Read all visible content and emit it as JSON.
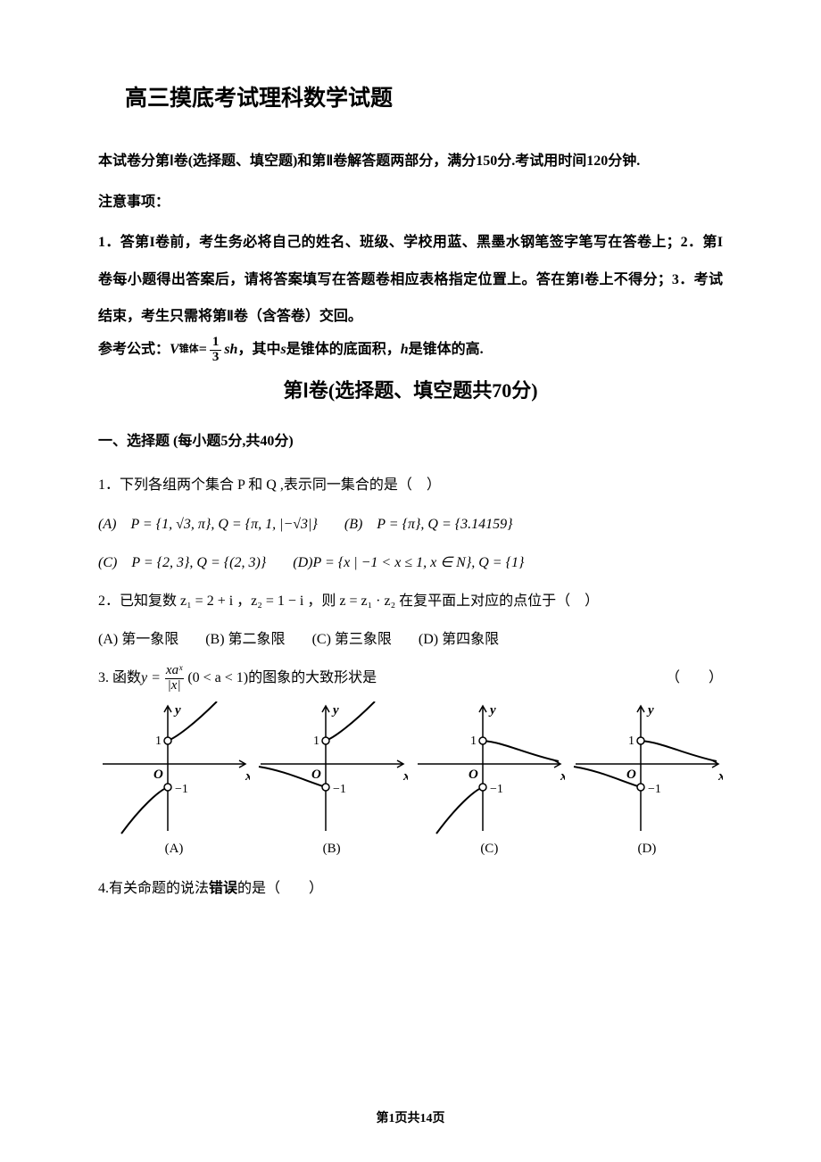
{
  "title": "高三摸底考试理科数学试题",
  "intro1": "本试卷分第Ⅰ卷(选择题、填空题)和第Ⅱ卷解答题两部分，满分150分.考试用时间120分钟.",
  "notice_head": "注意事项：",
  "notice_body": "1．答第I卷前，考生务必将自己的姓名、班级、学校用蓝、黑墨水钢笔签字笔写在答卷上；2．第I卷每小题得出答案后，请将答案填写在答题卷相应表格指定位置上。答在第Ⅰ卷上不得分；3．考试结束，考生只需将第Ⅱ卷（含答卷）交回。",
  "formula_prefix": "参考公式：",
  "formula_v": "V",
  "formula_vsub": "锥体",
  "formula_eq": " = ",
  "formula_num": "1",
  "formula_den": "3",
  "formula_sh": "sh",
  "formula_mid": "，其中 ",
  "formula_s": "s",
  "formula_s_txt": " 是锥体的底面积，",
  "formula_h": " h ",
  "formula_h_txt": "是锥体的高.",
  "part1_title": "第Ⅰ卷(选择题、填空题共70分)",
  "sec1": "一、选择题 (每小题5分,共40分)",
  "q1": "1．下列各组两个集合 P 和 Q ,表示同一集合的是（　）",
  "q1_a_pre": "(A)　",
  "q1_a": "P = {1, √3, π}, Q = {π, 1, |−√3|}",
  "q1_b_pre": "(B)　",
  "q1_b": "P = {π}, Q = {3.14159}",
  "q1_c_pre": "(C)　",
  "q1_c": "P = {2, 3}, Q = {(2, 3)}",
  "q1_d_pre": "(D) ",
  "q1_d": "P = {x | −1 < x ≤ 1, x ∈ N}, Q = {1}",
  "q2": "2．已知复数 z₁ = 2 + i ，z₂ = 1 − i ，则 z = z₁ · z₂ 在复平面上对应的点位于（　）",
  "q2_a": "(A) 第一象限",
  "q2_b": "(B) 第二象限",
  "q2_c": "(C) 第三象限",
  "q2_d": "(D) 第四象限",
  "q3_pre": "3. 函数 ",
  "q3_y": "y = ",
  "q3_num": "xaˣ",
  "q3_den": "|x|",
  "q3_cond": " (0 < a < 1) ",
  "q3_post": "的图象的大致形状是",
  "q3_paren": "（　　）",
  "q4": "4.有关命题的说法",
  "q4_err": "错误",
  "q4_post": "的是（　　）",
  "footer": "第1页共14页",
  "chart": {
    "y_label": "y",
    "x_label": "x",
    "o_label": "O",
    "labels": [
      "(A)",
      "(B)",
      "(C)",
      "(D)"
    ],
    "types": [
      "A",
      "B",
      "C",
      "D"
    ],
    "tick_pos": "1",
    "tick_neg": "−1",
    "axis_color": "#000000",
    "curve_color": "#000000",
    "line_width": 1.5
  }
}
